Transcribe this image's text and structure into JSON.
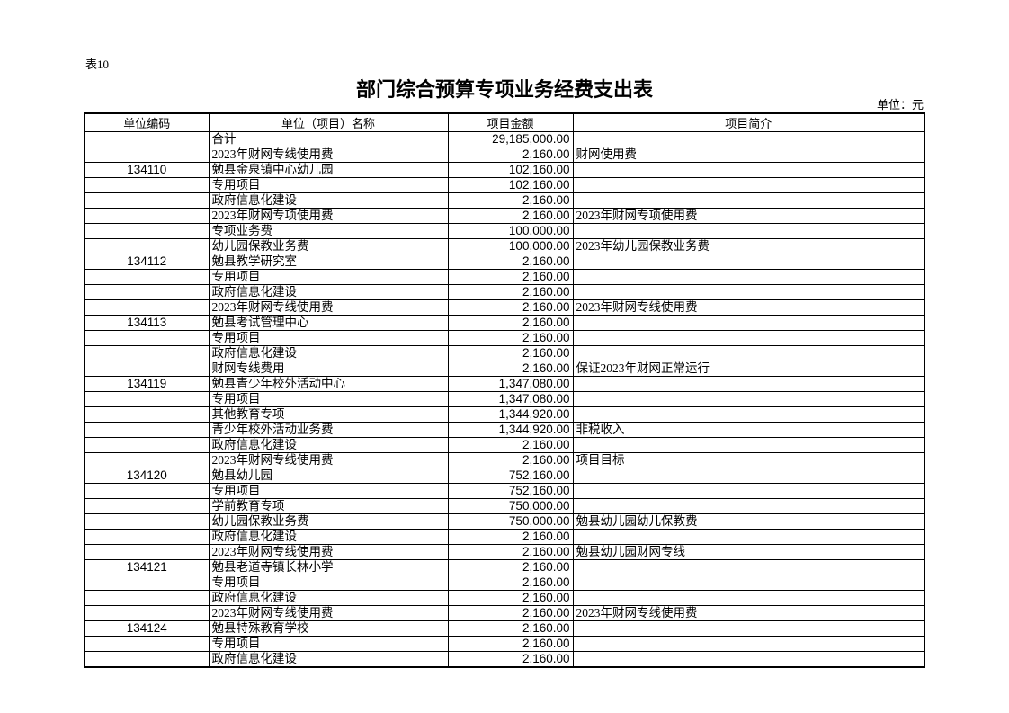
{
  "page": {
    "table_no": "表10",
    "title": "部门综合预算专项业务经费支出表",
    "unit_note": "单位：元"
  },
  "table": {
    "headers": [
      "单位编码",
      "单位（项目）名称",
      "项目金额",
      "项目简介"
    ],
    "rows": [
      {
        "code": "",
        "name": "合计",
        "amount": "29,185,000.00",
        "intro": ""
      },
      {
        "code": "",
        "name": "2023年财网专线使用费",
        "amount": "2,160.00",
        "intro": "财网使用费"
      },
      {
        "code": "134110",
        "name": "勉县金泉镇中心幼儿园",
        "amount": "102,160.00",
        "intro": ""
      },
      {
        "code": "",
        "name": "专用项目",
        "amount": "102,160.00",
        "intro": ""
      },
      {
        "code": "",
        "name": "政府信息化建设",
        "amount": "2,160.00",
        "intro": ""
      },
      {
        "code": "",
        "name": "2023年财网专项使用费",
        "amount": "2,160.00",
        "intro": "2023年财网专项使用费"
      },
      {
        "code": "",
        "name": "专项业务费",
        "amount": "100,000.00",
        "intro": ""
      },
      {
        "code": "",
        "name": "幼儿园保教业务费",
        "amount": "100,000.00",
        "intro": "2023年幼儿园保教业务费"
      },
      {
        "code": "134112",
        "name": "勉县教学研究室",
        "amount": "2,160.00",
        "intro": ""
      },
      {
        "code": "",
        "name": "专用项目",
        "amount": "2,160.00",
        "intro": ""
      },
      {
        "code": "",
        "name": "政府信息化建设",
        "amount": "2,160.00",
        "intro": ""
      },
      {
        "code": "",
        "name": "2023年财网专线使用费",
        "amount": "2,160.00",
        "intro": "2023年财网专线使用费"
      },
      {
        "code": "134113",
        "name": "勉县考试管理中心",
        "amount": "2,160.00",
        "intro": ""
      },
      {
        "code": "",
        "name": "专用项目",
        "amount": "2,160.00",
        "intro": ""
      },
      {
        "code": "",
        "name": "政府信息化建设",
        "amount": "2,160.00",
        "intro": ""
      },
      {
        "code": "",
        "name": "财网专线费用",
        "amount": "2,160.00",
        "intro": "保证2023年财网正常运行"
      },
      {
        "code": "134119",
        "name": "勉县青少年校外活动中心",
        "amount": "1,347,080.00",
        "intro": ""
      },
      {
        "code": "",
        "name": "专用项目",
        "amount": "1,347,080.00",
        "intro": ""
      },
      {
        "code": "",
        "name": "其他教育专项",
        "amount": "1,344,920.00",
        "intro": ""
      },
      {
        "code": "",
        "name": "青少年校外活动业务费",
        "amount": "1,344,920.00",
        "intro": "非税收入"
      },
      {
        "code": "",
        "name": "政府信息化建设",
        "amount": "2,160.00",
        "intro": ""
      },
      {
        "code": "",
        "name": "2023年财网专线使用费",
        "amount": "2,160.00",
        "intro": "项目目标"
      },
      {
        "code": "134120",
        "name": "勉县幼儿园",
        "amount": "752,160.00",
        "intro": ""
      },
      {
        "code": "",
        "name": "专用项目",
        "amount": "752,160.00",
        "intro": ""
      },
      {
        "code": "",
        "name": "学前教育专项",
        "amount": "750,000.00",
        "intro": ""
      },
      {
        "code": "",
        "name": "幼儿园保教业务费",
        "amount": "750,000.00",
        "intro": "勉县幼儿园幼儿保教费"
      },
      {
        "code": "",
        "name": "政府信息化建设",
        "amount": "2,160.00",
        "intro": ""
      },
      {
        "code": "",
        "name": "2023年财网专线使用费",
        "amount": "2,160.00",
        "intro": "勉县幼儿园财网专线"
      },
      {
        "code": "134121",
        "name": "勉县老道寺镇长林小学",
        "amount": "2,160.00",
        "intro": ""
      },
      {
        "code": "",
        "name": "专用项目",
        "amount": "2,160.00",
        "intro": ""
      },
      {
        "code": "",
        "name": "政府信息化建设",
        "amount": "2,160.00",
        "intro": ""
      },
      {
        "code": "",
        "name": "2023年财网专线使用费",
        "amount": "2,160.00",
        "intro": "2023年财网专线使用费"
      },
      {
        "code": "134124",
        "name": "勉县特殊教育学校",
        "amount": "2,160.00",
        "intro": ""
      },
      {
        "code": "",
        "name": "专用项目",
        "amount": "2,160.00",
        "intro": ""
      },
      {
        "code": "",
        "name": "政府信息化建设",
        "amount": "2,160.00",
        "intro": ""
      }
    ]
  }
}
